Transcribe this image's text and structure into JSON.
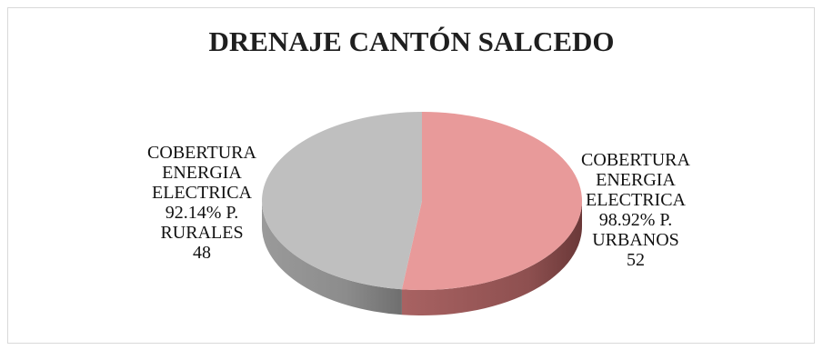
{
  "chart_data": {
    "type": "pie",
    "style": "3d",
    "title": "DRENAJE CANTÓN SALCEDO",
    "slices": [
      {
        "label_lines": [
          "COBERTURA",
          "ENERGIA",
          "ELECTRICA",
          "98.92% P.",
          "URBANOS"
        ],
        "value": 52,
        "value_label": "52",
        "color": "#e89a9a",
        "side_color": "#9c5a5a"
      },
      {
        "label_lines": [
          "COBERTURA",
          "ENERGIA",
          "ELECTRICA",
          "92.14% P.",
          "RURALES"
        ],
        "value": 48,
        "value_label": "48",
        "color": "#bfbfbf",
        "side_color": "#8a8a8a"
      }
    ],
    "legend": "none"
  }
}
